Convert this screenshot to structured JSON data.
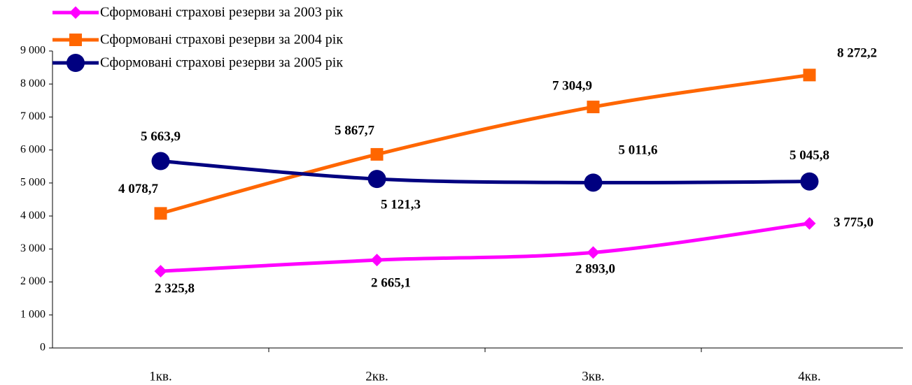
{
  "chart_data": {
    "type": "line",
    "categories": [
      "1кв.",
      "2кв.",
      "3кв.",
      "4кв."
    ],
    "series": [
      {
        "name": "Сформовані страхові резерви за 2003 рік",
        "color": "#ff00ff",
        "marker": "diamond",
        "values": [
          2325.8,
          2665.1,
          2893.0,
          3775.0
        ],
        "value_labels": [
          "2 325,8",
          "2 665,1",
          "2 893,0",
          "3 775,0"
        ]
      },
      {
        "name": "Сформовані страхові резерви за 2004 рік",
        "color": "#ff6600",
        "marker": "square",
        "values": [
          4078.7,
          5867.7,
          7304.9,
          8272.2
        ],
        "value_labels": [
          "4 078,7",
          "5 867,7",
          "7 304,9",
          "8 272,2"
        ]
      },
      {
        "name": "Сформовані страхові резерви за 2005 рік",
        "color": "#000080",
        "marker": "circle",
        "values": [
          5663.9,
          5121.3,
          5011.6,
          5045.8
        ],
        "value_labels": [
          "5 663,9",
          "5 121,3",
          "5 011,6",
          "5 045,8"
        ]
      }
    ],
    "ylim": [
      0,
      9000
    ],
    "yticks": [
      0,
      {
        "value": 1000,
        "label": "1 000"
      },
      {
        "value": 2000,
        "label": "2 000"
      },
      {
        "value": 3000,
        "label": "3 000"
      },
      {
        "value": 4000,
        "label": "4 000"
      },
      {
        "value": 5000,
        "label": "5 000"
      },
      {
        "value": 6000,
        "label": "6 000"
      },
      {
        "value": 7000,
        "label": "7 000"
      },
      {
        "value": 8000,
        "label": "8 000"
      },
      {
        "value": 9000,
        "label": "9 000"
      }
    ],
    "grid": false,
    "smooth": true,
    "legend": "top-left"
  }
}
